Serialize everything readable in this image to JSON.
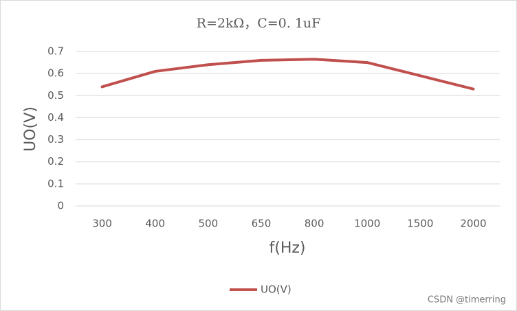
{
  "chart_data": {
    "type": "line",
    "title": "R=2kΩ，C=0. 1uF",
    "x_label": "f(Hz)",
    "y_label": "UO(V)",
    "categories": [
      "300",
      "400",
      "500",
      "650",
      "800",
      "1000",
      "1500",
      "2000"
    ],
    "series": [
      {
        "name": "UO(V)",
        "color": "#c0504d",
        "values": [
          0.54,
          0.61,
          0.64,
          0.66,
          0.665,
          0.65,
          0.59,
          0.53
        ]
      }
    ],
    "ylim": [
      0,
      0.7
    ],
    "yticks": [
      0,
      0.1,
      0.2,
      0.3,
      0.4,
      0.5,
      0.6,
      0.7
    ],
    "grid": true,
    "legend": "bottom",
    "watermark": "CSDN @timerring"
  }
}
